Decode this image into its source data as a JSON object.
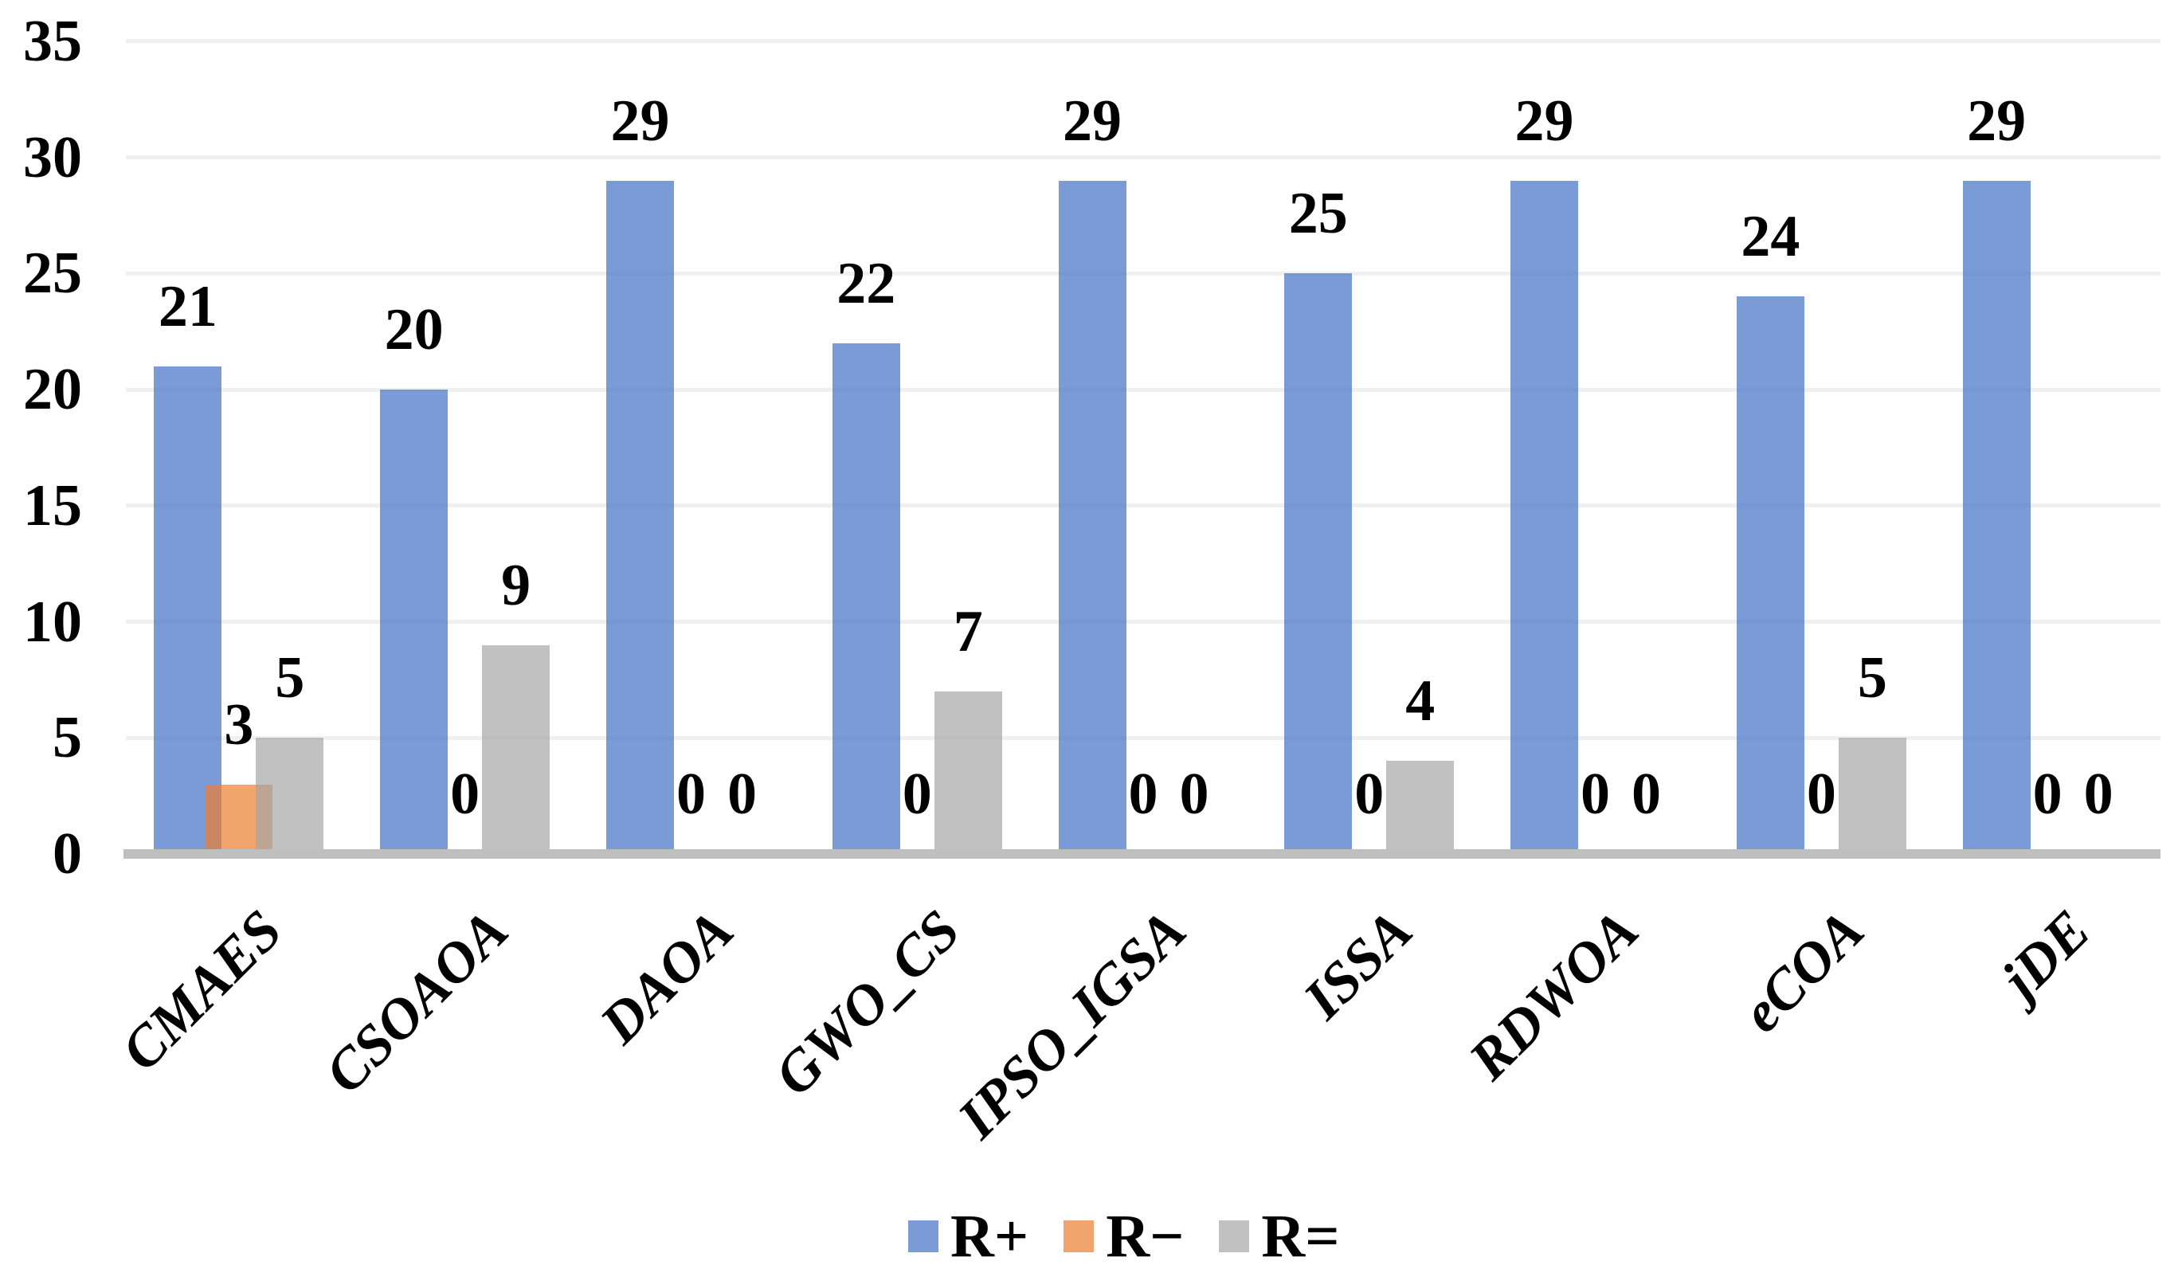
{
  "chart_data": {
    "type": "bar",
    "title": "",
    "xlabel": "",
    "ylabel": "",
    "categories": [
      "CMAES",
      "CSOAOA",
      "DAOA",
      "GWO_CS",
      "IPSO_IGSA",
      "ISSA",
      "RDWOA",
      "eCOA",
      "jDE"
    ],
    "series": [
      {
        "name": "R+",
        "values": [
          21,
          20,
          29,
          22,
          29,
          25,
          29,
          24,
          29
        ],
        "base_color": "#4472C4",
        "fill_rgba": "rgba(68,114,196,0.71)"
      },
      {
        "name": "R−",
        "values": [
          3,
          0,
          0,
          0,
          0,
          0,
          0,
          0,
          0
        ],
        "base_color": "#ED7D31",
        "fill_rgba": "rgba(237,125,49,0.70)"
      },
      {
        "name": "R=",
        "values": [
          5,
          9,
          0,
          7,
          0,
          4,
          0,
          5,
          0
        ],
        "base_color": "#A5A5A5",
        "fill_rgba": "rgba(165,165,165,0.69)"
      }
    ],
    "y_ticks": [
      35,
      30,
      25,
      20,
      15,
      10,
      5,
      0
    ],
    "ylim": [
      0,
      35
    ],
    "grid": "horizontal-only",
    "gridline_color": "#F0F0F0",
    "axis_line_color": "#BFBFBF",
    "data_label_color": "#000000",
    "tick_label_color": "#000000",
    "background_color": "#FFFFFF",
    "legend_position": "bottom-center"
  }
}
